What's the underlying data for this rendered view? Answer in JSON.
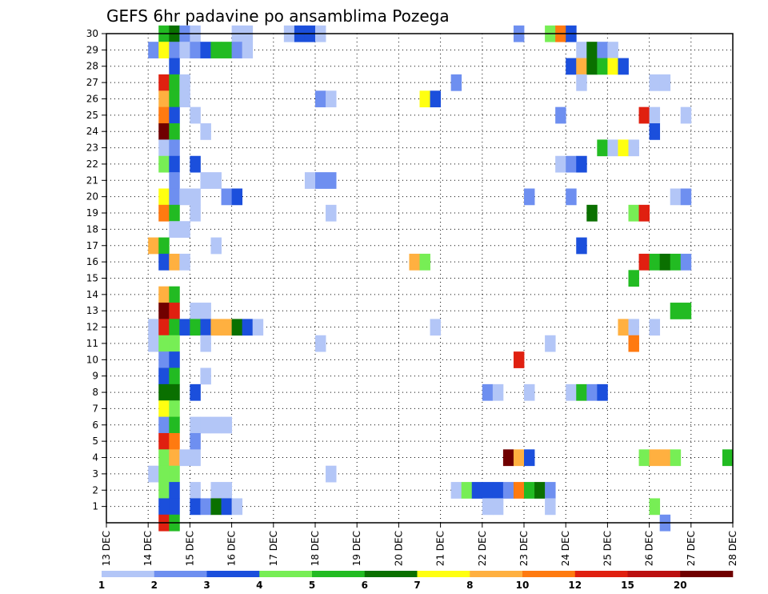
{
  "chart_data": {
    "type": "heatmap",
    "title": "GEFS 6hr padavine po ansamblima Pozega",
    "xlabel": "",
    "ylabel": "",
    "x_tick_labels": [
      "13 DEC",
      "14 DEC",
      "15 DEC",
      "16 DEC",
      "17 DEC",
      "18 DEC",
      "19 DEC",
      "20 DEC",
      "21 DEC",
      "22 DEC",
      "23 DEC",
      "24 DEC",
      "25 DEC",
      "26 DEC",
      "27 DEC",
      "28 DEC"
    ],
    "y_tick_labels": [
      "1",
      "2",
      "3",
      "4",
      "5",
      "6",
      "7",
      "8",
      "9",
      "10",
      "11",
      "12",
      "13",
      "14",
      "15",
      "16",
      "17",
      "18",
      "19",
      "20",
      "21",
      "22",
      "23",
      "24",
      "25",
      "26",
      "27",
      "28",
      "29",
      "30"
    ],
    "y_range": [
      0,
      30
    ],
    "x_range_days": [
      0,
      15
    ],
    "time_step_hours": 6,
    "grid": "dotted",
    "colorbar": {
      "orientation": "horizontal",
      "placement": "bottom",
      "labels": [
        "1",
        "2",
        "3",
        "4",
        "5",
        "6",
        "7",
        "8",
        "10",
        "12",
        "15",
        "20"
      ],
      "colors": [
        "#b3c6f7",
        "#6e8ff0",
        "#1b4fdc",
        "#77ee55",
        "#22bb22",
        "#0a7000",
        "#ffff11",
        "#ffb040",
        "#ff7a10",
        "#e02010",
        "#bb1010",
        "#700000"
      ]
    },
    "cells_note": "each cell: [ensemble_member, step_index_from_13DEC00Z (6h steps), color_class_index 0-11]",
    "cells": [
      [
        30,
        5,
        4
      ],
      [
        30,
        6,
        5
      ],
      [
        30,
        7,
        1
      ],
      [
        30,
        8,
        0
      ],
      [
        30,
        12,
        0
      ],
      [
        30,
        13,
        0
      ],
      [
        30,
        17,
        0
      ],
      [
        30,
        18,
        2
      ],
      [
        30,
        19,
        2
      ],
      [
        30,
        20,
        0
      ],
      [
        30,
        39,
        1
      ],
      [
        30,
        42,
        3
      ],
      [
        30,
        43,
        8
      ],
      [
        30,
        44,
        2
      ],
      [
        29,
        4,
        1
      ],
      [
        29,
        5,
        6
      ],
      [
        29,
        6,
        1
      ],
      [
        29,
        7,
        0
      ],
      [
        29,
        8,
        1
      ],
      [
        29,
        9,
        2
      ],
      [
        29,
        10,
        4
      ],
      [
        29,
        11,
        4
      ],
      [
        29,
        12,
        1
      ],
      [
        29,
        13,
        0
      ],
      [
        29,
        45,
        0
      ],
      [
        29,
        46,
        5
      ],
      [
        29,
        47,
        1
      ],
      [
        29,
        48,
        0
      ],
      [
        28,
        6,
        2
      ],
      [
        28,
        44,
        2
      ],
      [
        28,
        45,
        7
      ],
      [
        28,
        46,
        5
      ],
      [
        28,
        47,
        4
      ],
      [
        28,
        48,
        6
      ],
      [
        28,
        49,
        2
      ],
      [
        27,
        5,
        9
      ],
      [
        27,
        6,
        4
      ],
      [
        27,
        7,
        0
      ],
      [
        27,
        33,
        1
      ],
      [
        27,
        45,
        0
      ],
      [
        27,
        52,
        0
      ],
      [
        27,
        53,
        0
      ],
      [
        26,
        5,
        7
      ],
      [
        26,
        6,
        4
      ],
      [
        26,
        7,
        0
      ],
      [
        26,
        20,
        1
      ],
      [
        26,
        21,
        0
      ],
      [
        26,
        30,
        6
      ],
      [
        26,
        31,
        2
      ],
      [
        25,
        5,
        8
      ],
      [
        25,
        6,
        2
      ],
      [
        25,
        8,
        0
      ],
      [
        25,
        43,
        1
      ],
      [
        25,
        51,
        9
      ],
      [
        25,
        52,
        0
      ],
      [
        25,
        55,
        0
      ],
      [
        24,
        5,
        11
      ],
      [
        24,
        6,
        4
      ],
      [
        24,
        9,
        0
      ],
      [
        24,
        52,
        2
      ],
      [
        23,
        5,
        0
      ],
      [
        23,
        6,
        1
      ],
      [
        23,
        47,
        4
      ],
      [
        23,
        48,
        0
      ],
      [
        23,
        49,
        6
      ],
      [
        23,
        50,
        0
      ],
      [
        22,
        5,
        3
      ],
      [
        22,
        6,
        2
      ],
      [
        22,
        8,
        2
      ],
      [
        22,
        43,
        0
      ],
      [
        22,
        44,
        1
      ],
      [
        22,
        45,
        2
      ],
      [
        21,
        6,
        1
      ],
      [
        21,
        9,
        0
      ],
      [
        21,
        10,
        0
      ],
      [
        21,
        19,
        0
      ],
      [
        21,
        20,
        1
      ],
      [
        21,
        21,
        1
      ],
      [
        20,
        5,
        6
      ],
      [
        20,
        6,
        1
      ],
      [
        20,
        7,
        0
      ],
      [
        20,
        8,
        0
      ],
      [
        20,
        11,
        1
      ],
      [
        20,
        12,
        2
      ],
      [
        20,
        40,
        1
      ],
      [
        20,
        44,
        1
      ],
      [
        20,
        54,
        0
      ],
      [
        20,
        55,
        1
      ],
      [
        19,
        5,
        8
      ],
      [
        19,
        6,
        4
      ],
      [
        19,
        8,
        0
      ],
      [
        19,
        21,
        0
      ],
      [
        19,
        46,
        5
      ],
      [
        19,
        50,
        3
      ],
      [
        19,
        51,
        9
      ],
      [
        18,
        6,
        0
      ],
      [
        18,
        7,
        0
      ],
      [
        17,
        4,
        7
      ],
      [
        17,
        5,
        4
      ],
      [
        17,
        10,
        0
      ],
      [
        17,
        45,
        2
      ],
      [
        16,
        5,
        2
      ],
      [
        16,
        6,
        7
      ],
      [
        16,
        7,
        0
      ],
      [
        16,
        29,
        7
      ],
      [
        16,
        30,
        3
      ],
      [
        16,
        51,
        9
      ],
      [
        16,
        52,
        4
      ],
      [
        16,
        53,
        5
      ],
      [
        16,
        54,
        4
      ],
      [
        16,
        55,
        1
      ],
      [
        15,
        50,
        4
      ],
      [
        14,
        5,
        7
      ],
      [
        14,
        6,
        4
      ],
      [
        13,
        5,
        11
      ],
      [
        13,
        6,
        9
      ],
      [
        13,
        8,
        0
      ],
      [
        13,
        9,
        0
      ],
      [
        13,
        54,
        4
      ],
      [
        13,
        55,
        4
      ],
      [
        12,
        4,
        0
      ],
      [
        12,
        5,
        9
      ],
      [
        12,
        6,
        4
      ],
      [
        12,
        7,
        2
      ],
      [
        12,
        8,
        4
      ],
      [
        12,
        9,
        2
      ],
      [
        12,
        10,
        7
      ],
      [
        12,
        11,
        7
      ],
      [
        12,
        12,
        5
      ],
      [
        12,
        13,
        2
      ],
      [
        12,
        14,
        0
      ],
      [
        12,
        31,
        0
      ],
      [
        12,
        49,
        7
      ],
      [
        12,
        50,
        0
      ],
      [
        12,
        52,
        0
      ],
      [
        11,
        4,
        0
      ],
      [
        11,
        5,
        3
      ],
      [
        11,
        6,
        3
      ],
      [
        11,
        9,
        0
      ],
      [
        11,
        20,
        0
      ],
      [
        11,
        42,
        0
      ],
      [
        11,
        50,
        8
      ],
      [
        10,
        5,
        1
      ],
      [
        10,
        6,
        2
      ],
      [
        10,
        39,
        9
      ],
      [
        9,
        5,
        2
      ],
      [
        9,
        6,
        4
      ],
      [
        9,
        9,
        0
      ],
      [
        8,
        5,
        5
      ],
      [
        8,
        6,
        5
      ],
      [
        8,
        8,
        2
      ],
      [
        8,
        36,
        1
      ],
      [
        8,
        37,
        0
      ],
      [
        8,
        40,
        0
      ],
      [
        8,
        44,
        0
      ],
      [
        8,
        45,
        4
      ],
      [
        8,
        46,
        1
      ],
      [
        8,
        47,
        2
      ],
      [
        7,
        5,
        6
      ],
      [
        7,
        6,
        3
      ],
      [
        6,
        5,
        1
      ],
      [
        6,
        6,
        4
      ],
      [
        6,
        8,
        0
      ],
      [
        6,
        9,
        0
      ],
      [
        6,
        10,
        0
      ],
      [
        6,
        11,
        0
      ],
      [
        5,
        5,
        9
      ],
      [
        5,
        6,
        8
      ],
      [
        5,
        8,
        1
      ],
      [
        4,
        5,
        3
      ],
      [
        4,
        6,
        7
      ],
      [
        4,
        7,
        0
      ],
      [
        4,
        8,
        0
      ],
      [
        4,
        38,
        11
      ],
      [
        4,
        39,
        7
      ],
      [
        4,
        40,
        2
      ],
      [
        4,
        51,
        3
      ],
      [
        4,
        52,
        7
      ],
      [
        4,
        53,
        7
      ],
      [
        4,
        54,
        3
      ],
      [
        4,
        59,
        4
      ],
      [
        3,
        4,
        0
      ],
      [
        3,
        5,
        3
      ],
      [
        3,
        6,
        3
      ],
      [
        3,
        21,
        0
      ],
      [
        2,
        5,
        3
      ],
      [
        2,
        6,
        2
      ],
      [
        2,
        8,
        0
      ],
      [
        2,
        10,
        0
      ],
      [
        2,
        11,
        0
      ],
      [
        2,
        33,
        0
      ],
      [
        2,
        34,
        3
      ],
      [
        2,
        35,
        2
      ],
      [
        2,
        36,
        2
      ],
      [
        2,
        37,
        2
      ],
      [
        2,
        38,
        1
      ],
      [
        2,
        39,
        8
      ],
      [
        2,
        40,
        4
      ],
      [
        2,
        41,
        5
      ],
      [
        2,
        42,
        1
      ],
      [
        1,
        5,
        2
      ],
      [
        1,
        6,
        2
      ],
      [
        1,
        8,
        2
      ],
      [
        1,
        9,
        1
      ],
      [
        1,
        10,
        5
      ],
      [
        1,
        11,
        2
      ],
      [
        1,
        12,
        0
      ],
      [
        1,
        36,
        0
      ],
      [
        1,
        37,
        0
      ],
      [
        1,
        42,
        0
      ],
      [
        1,
        52,
        3
      ],
      [
        0,
        5,
        9
      ],
      [
        0,
        6,
        4
      ],
      [
        0,
        53,
        1
      ]
    ]
  }
}
